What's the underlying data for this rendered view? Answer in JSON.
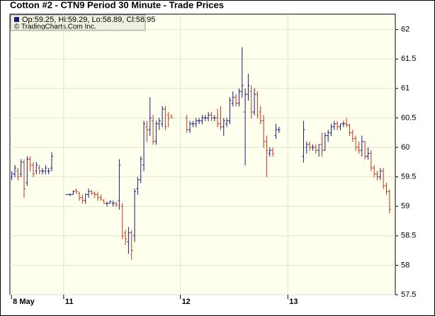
{
  "chart_data": {
    "type": "ohlc",
    "title": "Cotton #2 - CTN9 Period 30 Minute - Trade Prices",
    "legend_text": "Op:59.25, Hi:59.29, Lo:58.89, Cl:58.95",
    "source": "© TradingCharts.Com Inc.",
    "legend_color": "#1a1a7a",
    "up_color": "#1a1a7a",
    "down_color": "#c8321e",
    "grid": true,
    "xlim": [
      -0.5,
      125
    ],
    "xticks": [
      {
        "value": 0,
        "label": "8 May"
      },
      {
        "value": 17,
        "label": "11"
      },
      {
        "value": 55,
        "label": "12"
      },
      {
        "value": 90,
        "label": "13"
      }
    ],
    "ylim": [
      57.5,
      62.26
    ],
    "yticks": [
      57.5,
      58,
      58.5,
      59,
      59.5,
      60,
      60.5,
      61,
      61.5,
      62
    ],
    "x": [
      0,
      1,
      2,
      3,
      4,
      5,
      6,
      7,
      8,
      9,
      10,
      11,
      12,
      13,
      18,
      19,
      20,
      21,
      22,
      23,
      24,
      25,
      26,
      27,
      28,
      29,
      30,
      31,
      32,
      33,
      34,
      35,
      36,
      37,
      38,
      39,
      40,
      41,
      42,
      43,
      44,
      45,
      46,
      47,
      48,
      49,
      50,
      51,
      52,
      57,
      58,
      59,
      60,
      61,
      62,
      63,
      64,
      65,
      66,
      67,
      68,
      69,
      70,
      71,
      72,
      73,
      74,
      75,
      76,
      77,
      78,
      79,
      80,
      81,
      82,
      83,
      84,
      85,
      86,
      87,
      95,
      96,
      97,
      98,
      99,
      100,
      101,
      102,
      103,
      104,
      105,
      106,
      107,
      108,
      109,
      110,
      111,
      112,
      113,
      114,
      115,
      116,
      117,
      118,
      119,
      120,
      121,
      122,
      123
    ],
    "open": [
      59.5,
      59.55,
      59.6,
      59.55,
      59.75,
      59.4,
      59.8,
      59.7,
      59.6,
      59.65,
      59.6,
      59.6,
      59.6,
      59.65,
      59.2,
      59.2,
      59.2,
      59.27,
      59.22,
      59.15,
      59.1,
      59.2,
      59.25,
      59.22,
      59.2,
      59.15,
      59.1,
      59.05,
      59.05,
      59.05,
      59.05,
      59.1,
      59.0,
      58.55,
      58.4,
      58.55,
      58.5,
      59.3,
      59.45,
      59.7,
      60.35,
      60.3,
      60.45,
      60.1,
      60.4,
      60.4,
      60.65,
      60.55,
      60.55,
      60.5,
      60.3,
      60.4,
      60.4,
      60.45,
      60.45,
      60.5,
      60.5,
      60.55,
      60.5,
      60.5,
      60.4,
      60.35,
      60.4,
      60.45,
      60.75,
      60.85,
      60.75,
      60.95,
      60.6,
      60.9,
      60.95,
      60.6,
      60.9,
      60.6,
      60.45,
      60.1,
      59.9,
      59.95,
      60.2,
      60.3,
      59.85,
      60.0,
      60.05,
      60.0,
      60.0,
      59.95,
      60.05,
      59.95,
      60.2,
      60.25,
      60.35,
      60.4,
      60.35,
      60.4,
      60.4,
      60.38,
      60.25,
      60.15,
      60.0,
      59.95,
      60.1,
      59.85,
      59.9,
      59.65,
      59.55,
      59.5,
      59.6,
      59.35,
      59.25
    ],
    "high": [
      59.6,
      59.7,
      59.65,
      59.8,
      59.8,
      59.85,
      59.85,
      59.75,
      59.75,
      59.7,
      59.65,
      59.7,
      59.65,
      59.92,
      59.2,
      59.22,
      59.27,
      59.3,
      59.25,
      59.2,
      59.22,
      59.3,
      59.28,
      59.25,
      59.25,
      59.2,
      59.12,
      59.08,
      59.1,
      59.1,
      59.08,
      59.8,
      59.05,
      58.6,
      58.65,
      58.6,
      59.3,
      59.5,
      59.85,
      60.45,
      60.45,
      60.85,
      60.55,
      60.45,
      60.5,
      60.7,
      60.7,
      60.6,
      60.55,
      60.55,
      60.45,
      60.45,
      60.5,
      60.5,
      60.55,
      60.55,
      60.6,
      60.6,
      60.55,
      60.65,
      60.7,
      60.5,
      60.5,
      60.85,
      60.95,
      60.9,
      61.0,
      61.7,
      61.0,
      61.25,
      61.05,
      61.0,
      60.95,
      60.7,
      60.55,
      60.2,
      60.0,
      60.0,
      60.4,
      60.35,
      60.45,
      60.1,
      60.1,
      60.05,
      60.05,
      60.05,
      60.25,
      60.25,
      60.3,
      60.4,
      60.45,
      60.45,
      60.4,
      60.45,
      60.5,
      60.4,
      60.3,
      60.2,
      60.1,
      60.2,
      60.1,
      60.0,
      59.95,
      59.7,
      59.6,
      59.65,
      59.65,
      59.4,
      59.29
    ],
    "low": [
      59.45,
      59.5,
      59.45,
      59.5,
      59.15,
      59.35,
      59.6,
      59.5,
      59.55,
      59.55,
      59.55,
      59.55,
      59.55,
      59.6,
      59.2,
      59.18,
      59.2,
      59.22,
      59.1,
      59.05,
      59.05,
      59.15,
      59.2,
      59.15,
      59.1,
      59.1,
      59.05,
      59.0,
      59.05,
      59.0,
      59.0,
      58.95,
      58.45,
      58.35,
      58.2,
      58.1,
      58.4,
      59.2,
      59.4,
      59.6,
      60.1,
      60.2,
      60.05,
      60.05,
      60.3,
      60.35,
      60.3,
      60.35,
      60.5,
      60.25,
      60.25,
      60.35,
      60.35,
      60.4,
      60.4,
      60.45,
      60.45,
      60.45,
      60.45,
      60.35,
      60.3,
      60.2,
      60.35,
      60.4,
      60.7,
      60.7,
      60.7,
      60.85,
      59.7,
      60.8,
      60.5,
      60.55,
      60.5,
      60.4,
      60.0,
      59.5,
      59.85,
      59.85,
      60.15,
      60.25,
      59.75,
      59.9,
      59.95,
      59.95,
      59.9,
      59.85,
      59.85,
      59.95,
      60.1,
      60.2,
      60.3,
      60.3,
      60.3,
      60.35,
      60.35,
      60.2,
      60.1,
      59.95,
      59.9,
      59.85,
      59.8,
      59.8,
      59.6,
      59.5,
      59.45,
      59.45,
      59.3,
      59.2,
      58.89
    ],
    "close": [
      59.55,
      59.65,
      59.5,
      59.75,
      59.3,
      59.8,
      59.7,
      59.55,
      59.7,
      59.6,
      59.6,
      59.65,
      59.6,
      59.85,
      59.2,
      59.2,
      59.25,
      59.25,
      59.15,
      59.1,
      59.2,
      59.25,
      59.22,
      59.2,
      59.15,
      59.12,
      59.05,
      59.05,
      59.08,
      59.05,
      59.02,
      59.7,
      58.5,
      58.45,
      58.55,
      58.25,
      59.25,
      59.45,
      59.8,
      60.4,
      60.3,
      60.5,
      60.1,
      60.4,
      60.45,
      60.65,
      60.35,
      60.5,
      60.5,
      60.3,
      60.4,
      60.4,
      60.45,
      60.45,
      60.5,
      60.5,
      60.55,
      60.5,
      60.5,
      60.4,
      60.35,
      60.45,
      60.45,
      60.8,
      60.85,
      60.75,
      60.95,
      61.05,
      60.9,
      61.05,
      60.6,
      60.9,
      60.55,
      60.45,
      60.1,
      59.95,
      59.95,
      59.9,
      60.3,
      60.3,
      60.3,
      60.05,
      60.0,
      60.0,
      59.95,
      60.05,
      59.95,
      60.2,
      60.25,
      60.35,
      60.4,
      60.35,
      60.4,
      60.4,
      60.38,
      60.25,
      60.15,
      60.0,
      59.95,
      60.1,
      59.85,
      59.9,
      59.65,
      59.55,
      59.5,
      59.6,
      59.35,
      59.25,
      58.95
    ]
  }
}
